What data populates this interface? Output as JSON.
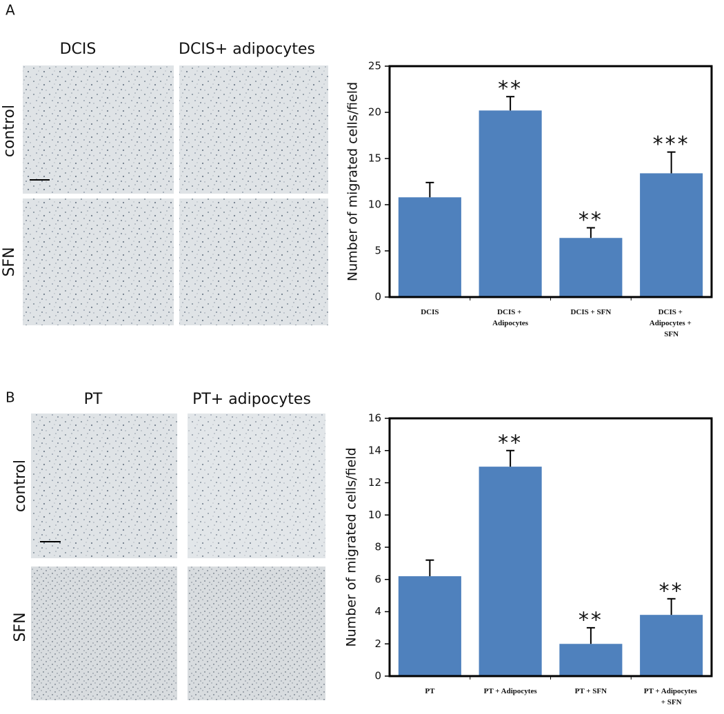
{
  "panels": [
    {
      "label": "A",
      "columns": [
        "DCIS",
        "DCIS+ adipocytes"
      ],
      "rows": [
        "control",
        "SFN"
      ]
    },
    {
      "label": "B",
      "columns": [
        "PT",
        "PT+ adipocytes"
      ],
      "rows": [
        "control",
        "SFN"
      ]
    }
  ],
  "chart_data": [
    {
      "type": "bar",
      "y_label": "Number of migrated cells/field",
      "categories": [
        "DCIS",
        "DCIS + Adipocytes",
        "DCIS + SFN",
        "DCIS + Adipocytes + SFN"
      ],
      "values": [
        10.8,
        20.2,
        6.4,
        13.4
      ],
      "errors": [
        1.6,
        1.5,
        1.1,
        2.3
      ],
      "annotations": [
        null,
        "**",
        "**",
        "***"
      ],
      "color": "#4f81bd",
      "ylim": [
        0,
        25
      ],
      "yticks": [
        0,
        5,
        10,
        15,
        20,
        25
      ]
    },
    {
      "type": "bar",
      "y_label": "Number  of migrated cells/field",
      "categories": [
        "PT",
        "PT + Adipocytes",
        "PT + SFN",
        "PT + Adipocytes + SFN"
      ],
      "values": [
        6.2,
        13.0,
        2.0,
        3.8
      ],
      "errors": [
        1.0,
        1.0,
        1.0,
        1.0
      ],
      "annotations": [
        null,
        "**",
        "**",
        "**"
      ],
      "color": "#4f81bd",
      "ylim": [
        0,
        16
      ],
      "yticks": [
        0,
        2,
        4,
        6,
        8,
        10,
        12,
        14,
        16
      ]
    }
  ]
}
